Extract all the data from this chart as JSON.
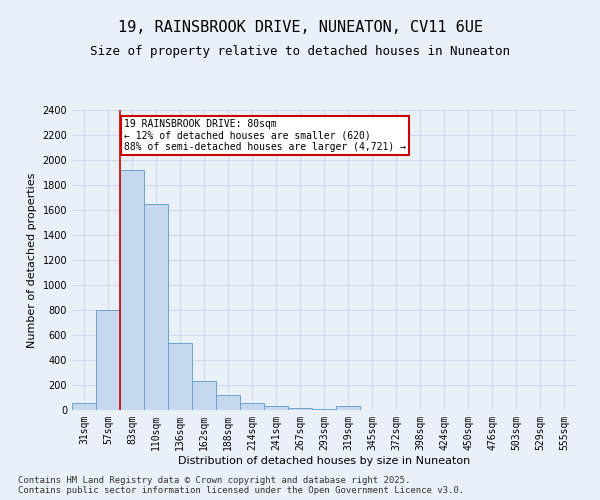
{
  "title1": "19, RAINSBROOK DRIVE, NUNEATON, CV11 6UE",
  "title2": "Size of property relative to detached houses in Nuneaton",
  "xlabel": "Distribution of detached houses by size in Nuneaton",
  "ylabel": "Number of detached properties",
  "categories": [
    "31sqm",
    "57sqm",
    "83sqm",
    "110sqm",
    "136sqm",
    "162sqm",
    "188sqm",
    "214sqm",
    "241sqm",
    "267sqm",
    "293sqm",
    "319sqm",
    "345sqm",
    "372sqm",
    "398sqm",
    "424sqm",
    "450sqm",
    "476sqm",
    "503sqm",
    "529sqm",
    "555sqm"
  ],
  "values": [
    60,
    800,
    1920,
    1650,
    540,
    230,
    120,
    55,
    30,
    15,
    10,
    30,
    0,
    0,
    0,
    0,
    0,
    0,
    0,
    0,
    0
  ],
  "bar_color": "#c5d8f0",
  "bar_edge_color": "#6ba3cf",
  "red_line_x": 1.5,
  "annotation_text": "19 RAINSBROOK DRIVE: 80sqm\n← 12% of detached houses are smaller (620)\n88% of semi-detached houses are larger (4,721) →",
  "annotation_box_facecolor": "#ffffff",
  "annotation_box_edgecolor": "#cc0000",
  "red_line_color": "#cc0000",
  "ylim": [
    0,
    2400
  ],
  "yticks": [
    0,
    200,
    400,
    600,
    800,
    1000,
    1200,
    1400,
    1600,
    1800,
    2000,
    2200,
    2400
  ],
  "grid_color": "#c8d4e8",
  "bg_color": "#eaf0f8",
  "footer": "Contains HM Land Registry data © Crown copyright and database right 2025.\nContains public sector information licensed under the Open Government Licence v3.0.",
  "title_fontsize": 11,
  "subtitle_fontsize": 9,
  "axis_label_fontsize": 8,
  "tick_fontsize": 7,
  "footer_fontsize": 6.5,
  "annotation_fontsize": 7
}
